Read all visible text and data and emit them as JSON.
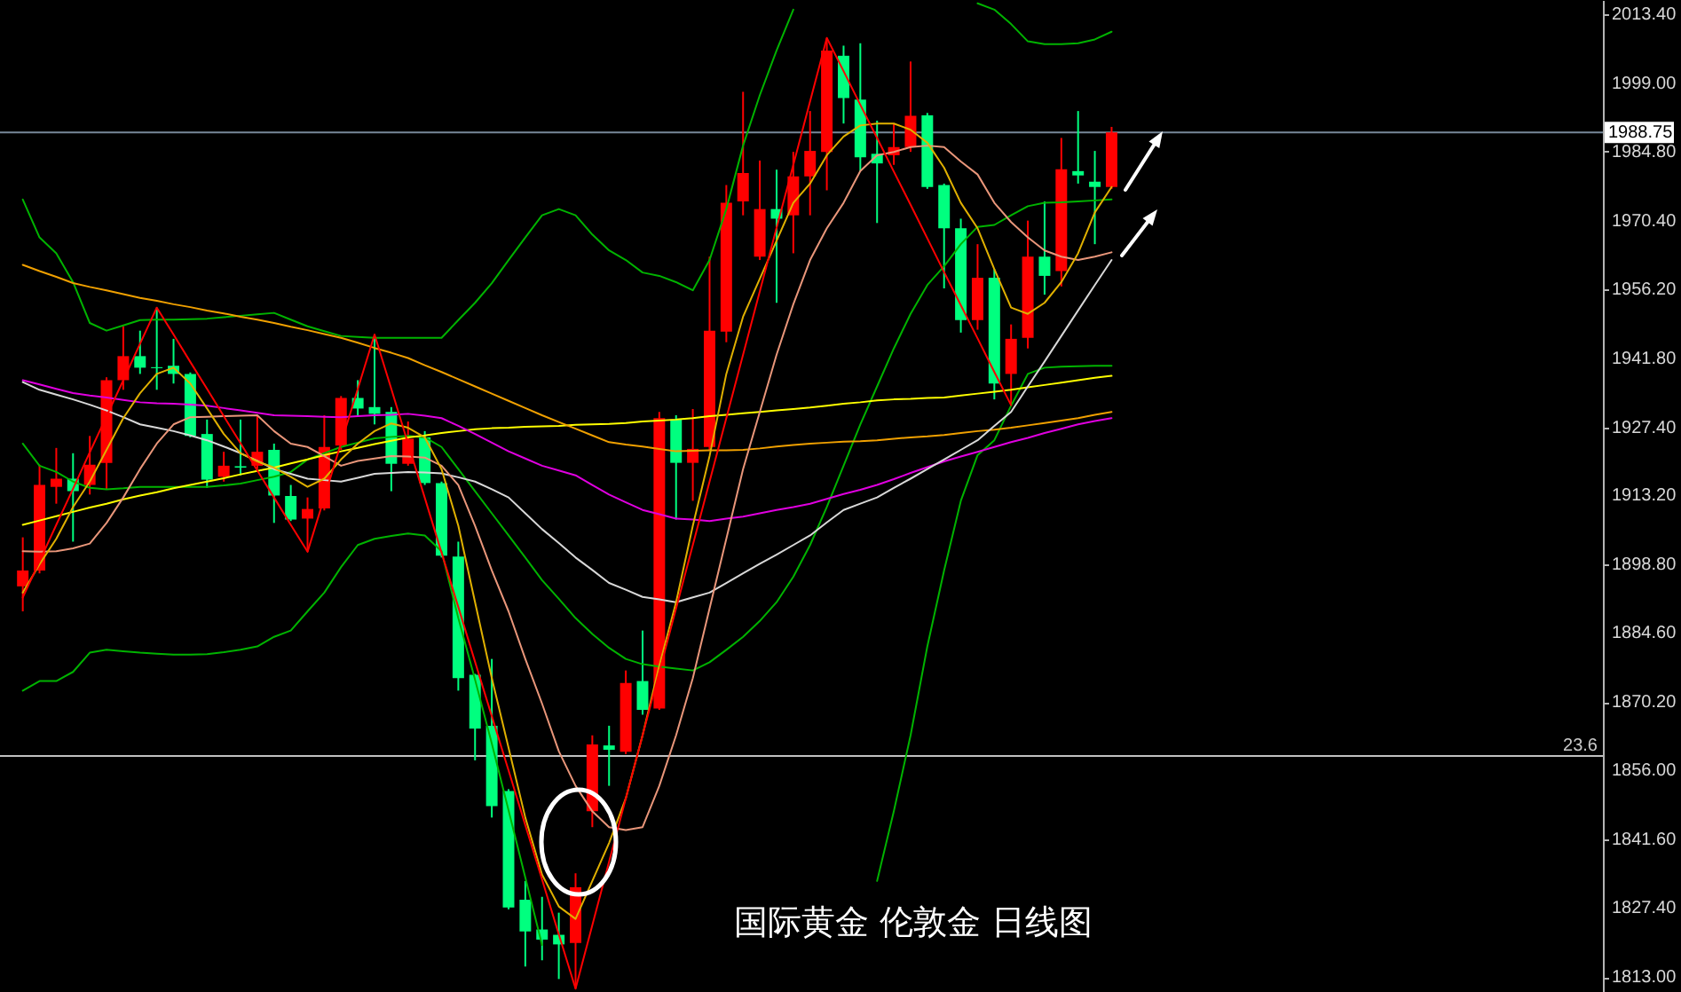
{
  "chart_data": {
    "type": "candlestick",
    "title": "国际黄金 伦敦金 日线图",
    "categories": [
      null,
      null,
      null,
      null,
      null,
      null,
      null,
      null,
      null,
      null,
      null,
      null,
      null,
      null,
      null,
      null,
      null,
      null,
      null,
      null,
      null,
      null,
      null,
      null,
      null,
      null,
      null,
      null,
      null,
      null,
      null,
      null,
      null,
      null,
      null,
      null,
      null,
      null,
      null,
      null,
      null,
      null,
      null,
      null,
      null,
      null,
      null,
      null,
      null,
      null,
      null,
      null,
      null,
      null,
      null,
      null,
      null,
      null,
      null,
      null,
      null,
      null,
      null,
      null,
      null,
      null
    ],
    "ohlc": [
      [
        1894.3,
        1904.5,
        1889.1,
        1897.6
      ],
      [
        1897.6,
        1919.6,
        1897.0,
        1915.4
      ],
      [
        1915.0,
        1923.1,
        1911.5,
        1916.7
      ],
      [
        1916.7,
        1922.0,
        1903.6,
        1914.1
      ],
      [
        1915.4,
        1925.6,
        1913.4,
        1919.6
      ],
      [
        1920.0,
        1937.8,
        1914.5,
        1937.2
      ],
      [
        1937.2,
        1948.4,
        1935.2,
        1942.2
      ],
      [
        1942.2,
        1947.5,
        1938.5,
        1939.8
      ],
      [
        1939.9,
        1952.3,
        1935.2,
        1939.7
      ],
      [
        1940.2,
        1945.8,
        1936.5,
        1938.5
      ],
      [
        1938.5,
        1938.8,
        1925.3,
        1925.6
      ],
      [
        1926.0,
        1929.0,
        1914.8,
        1916.5
      ],
      [
        1917.1,
        1922.3,
        1916.1,
        1919.4
      ],
      [
        1919.3,
        1929.0,
        1917.4,
        1919.0
      ],
      [
        1919.4,
        1929.9,
        1918.7,
        1922.3
      ],
      [
        1922.7,
        1924.0,
        1907.5,
        1913.2
      ],
      [
        1913.1,
        1915.4,
        1907.9,
        1908.2
      ],
      [
        1908.4,
        1912.8,
        1901.5,
        1910.4
      ],
      [
        1910.5,
        1929.9,
        1910.1,
        1923.3
      ],
      [
        1923.6,
        1933.9,
        1922.7,
        1933.5
      ],
      [
        1933.5,
        1937.2,
        1929.9,
        1931.3
      ],
      [
        1931.6,
        1946.7,
        1928.0,
        1930.2
      ],
      [
        1930.6,
        1931.6,
        1914.1,
        1919.8
      ],
      [
        1919.8,
        1928.6,
        1919.4,
        1925.0
      ],
      [
        1925.3,
        1926.6,
        1915.4,
        1915.8
      ],
      [
        1915.8,
        1916.1,
        1900.3,
        1900.7
      ],
      [
        1900.5,
        1903.6,
        1872.6,
        1875.2
      ],
      [
        1875.9,
        1876.1,
        1858.1,
        1864.7
      ],
      [
        1865.3,
        1879.2,
        1846.2,
        1848.6
      ],
      [
        1851.7,
        1852.1,
        1827.1,
        1827.5
      ],
      [
        1829.1,
        1833.0,
        1815.2,
        1822.5
      ],
      [
        1822.9,
        1829.7,
        1816.5,
        1820.8
      ],
      [
        1821.8,
        1826.4,
        1812.6,
        1819.8
      ],
      [
        1820.1,
        1834.6,
        1810.6,
        1831.7
      ],
      [
        1847.5,
        1863.3,
        1844.2,
        1861.4
      ],
      [
        1861.2,
        1865.3,
        1852.8,
        1860.3
      ],
      [
        1859.9,
        1876.8,
        1859.4,
        1874.2
      ],
      [
        1874.6,
        1885.1,
        1867.6,
        1868.6
      ],
      [
        1868.9,
        1930.6,
        1868.6,
        1929.3
      ],
      [
        1929.0,
        1929.9,
        1908.2,
        1920.0
      ],
      [
        1920.0,
        1931.2,
        1912.1,
        1922.9
      ],
      [
        1923.3,
        1962.9,
        1922.7,
        1947.5
      ],
      [
        1947.3,
        1977.8,
        1945.1,
        1974.1
      ],
      [
        1974.4,
        1997.2,
        1971.5,
        1980.3
      ],
      [
        1962.9,
        1982.9,
        1962.2,
        1972.8
      ],
      [
        1972.8,
        1981.0,
        1953.3,
        1970.8
      ],
      [
        1971.5,
        1984.7,
        1963.6,
        1979.6
      ],
      [
        1979.6,
        1993.2,
        1971.5,
        1984.9
      ],
      [
        1984.7,
        2008.4,
        1976.7,
        2005.8
      ],
      [
        2004.7,
        2006.8,
        1990.6,
        1995.9
      ],
      [
        1995.6,
        2007.3,
        1980.7,
        1983.6
      ],
      [
        1984.3,
        1991.2,
        1969.9,
        1982.3
      ],
      [
        1984.0,
        1990.6,
        1982.0,
        1985.7
      ],
      [
        1985.7,
        2003.5,
        1984.7,
        1992.2
      ],
      [
        1992.3,
        1992.8,
        1977.0,
        1977.4
      ],
      [
        1977.8,
        1978.1,
        1956.3,
        1968.8
      ],
      [
        1968.8,
        1970.8,
        1947.1,
        1949.7
      ],
      [
        1949.7,
        1965.5,
        1947.7,
        1958.5
      ],
      [
        1958.5,
        1960.3,
        1933.2,
        1936.5
      ],
      [
        1938.5,
        1948.8,
        1932.0,
        1945.8
      ],
      [
        1946.0,
        1970.4,
        1943.8,
        1962.9
      ],
      [
        1962.9,
        1974.4,
        1955.0,
        1958.9
      ],
      [
        1959.9,
        1987.6,
        1956.7,
        1981.1
      ],
      [
        1980.7,
        1993.2,
        1978.1,
        1979.8
      ],
      [
        1978.5,
        1984.9,
        1965.5,
        1977.4
      ],
      [
        1977.4,
        1989.9,
        1977.0,
        1988.75
      ]
    ],
    "colors": [
      "#ff0000",
      "#ff0000",
      "#ff0000",
      "#00ff7f",
      "#ff0000",
      "#ff0000",
      "#ff0000",
      "#00ff7f",
      "#00ff7f",
      "#00ff7f",
      "#00ff7f",
      "#00ff7f",
      "#ff0000",
      "#00ff7f",
      "#ff0000",
      "#00ff7f",
      "#00ff7f",
      "#ff0000",
      "#ff0000",
      "#ff0000",
      "#00ff7f",
      "#00ff7f",
      "#00ff7f",
      "#ff0000",
      "#00ff7f",
      "#00ff7f",
      "#00ff7f",
      "#00ff7f",
      "#00ff7f",
      "#00ff7f",
      "#00ff7f",
      "#00ff7f",
      "#00ff7f",
      "#ff0000",
      "#ff0000",
      "#00ff7f",
      "#ff0000",
      "#00ff7f",
      "#ff0000",
      "#00ff7f",
      "#ff0000",
      "#ff0000",
      "#ff0000",
      "#ff0000",
      "#ff0000",
      "#00ff7f",
      "#ff0000",
      "#ff0000",
      "#ff0000",
      "#00ff7f",
      "#00ff7f",
      "#00ff7f",
      "#ff0000",
      "#ff0000",
      "#00ff7f",
      "#00ff7f",
      "#00ff7f",
      "#ff0000",
      "#00ff7f",
      "#ff0000",
      "#ff0000",
      "#00ff7f",
      "#ff0000",
      "#00ff7f",
      "#00ff7f",
      "#ff0000"
    ],
    "series": [
      {
        "type": "line",
        "color": "#00b300",
        "values": [
          1974.8,
          1966.9,
          1963.6,
          1957.6,
          1949.1,
          1947.5,
          1948.6,
          1949.7,
          1949.8,
          1949.8,
          1949.9,
          1950.0,
          1950.3,
          1950.6,
          1950.9,
          1951.2,
          1949.8,
          1948.4,
          1947.4,
          1946.4,
          1946.2,
          1946.0,
          1946.0,
          1946.0,
          1946.0,
          1946.0,
          1949.7,
          1953.3,
          1957.4,
          1962.2,
          1966.9,
          1971.5,
          1972.8,
          1971.5,
          1967.5,
          1964.2,
          1962.2,
          1959.6,
          1958.9,
          1957.6,
          1955.9,
          1962.2,
          1972.8,
          1986.0,
          1996.5,
          2005.8,
          2014.3,
          null,
          null,
          null,
          null,
          null,
          null,
          null,
          null,
          null,
          null,
          2015.6,
          2014.3,
          2011.3,
          2007.7,
          2007.1,
          2007.1,
          2007.3,
          2008.1,
          2009.7
        ]
      },
      {
        "type": "line",
        "color": "#00b300",
        "values": [
          1924.0,
          1919.4,
          1918.1,
          1916.1,
          1914.8,
          1914.5,
          1914.7,
          1915.0,
          1915.0,
          1915.0,
          1915.0,
          1915.0,
          1915.3,
          1915.7,
          1916.4,
          1917.1,
          1918.1,
          1920.7,
          1922.0,
          1923.3,
          1924.2,
          1925.1,
          1925.4,
          1925.6,
          1925.3,
          1923.3,
          1918.7,
          1914.1,
          1909.5,
          1904.9,
          1900.3,
          1895.6,
          1891.7,
          1887.7,
          1884.4,
          1881.5,
          1879.2,
          1878.1,
          1877.6,
          1877.2,
          1876.8,
          1878.5,
          1881.1,
          1883.8,
          1887.1,
          1891.0,
          1896.3,
          1902.9,
          1910.8,
          1919.4,
          1928.0,
          1935.9,
          1943.8,
          1951.0,
          1957.0,
          1960.9,
          1965.5,
          1969.1,
          1969.5,
          1971.5,
          1973.4,
          1974.1,
          1974.2,
          1974.4,
          1974.6,
          1974.8
        ]
      },
      {
        "type": "line",
        "color": "#00b300",
        "values": [
          1872.6,
          1874.6,
          1874.6,
          1876.5,
          1880.5,
          1881.1,
          1880.8,
          1880.5,
          1880.3,
          1880.1,
          1880.1,
          1880.2,
          1880.6,
          1881.1,
          1881.8,
          1883.8,
          1885.1,
          1889.1,
          1893.0,
          1898.3,
          1902.9,
          1904.2,
          1904.8,
          1905.3,
          1904.9,
          1901.6,
          1887.7,
          1874.9,
          1861.6,
          1847.7,
          1833.7,
          1819.7,
          null,
          null,
          null,
          null,
          null,
          null,
          null,
          null,
          null,
          null,
          null,
          null,
          null,
          null,
          null,
          null,
          null,
          null,
          null,
          1833.0,
          1847.5,
          1863.3,
          1881.8,
          1897.6,
          1912.1,
          1921.6,
          1924.7,
          1931.9,
          1938.5,
          1939.8,
          1940.0,
          1940.1,
          1940.2,
          1940.2
        ]
      },
      {
        "type": "line",
        "color": "#ffff00",
        "values": [
          1907.1,
          1908.0,
          1908.9,
          1909.8,
          1910.7,
          1911.5,
          1912.4,
          1913.2,
          1913.9,
          1914.7,
          1915.4,
          1916.1,
          1916.8,
          1917.6,
          1918.3,
          1919.0,
          1919.9,
          1920.7,
          1921.6,
          1922.4,
          1923.1,
          1923.9,
          1924.6,
          1925.3,
          1925.7,
          1926.2,
          1926.6,
          1927.0,
          1927.2,
          1927.3,
          1927.5,
          1927.6,
          1927.7,
          1927.9,
          1928.0,
          1928.1,
          1928.3,
          1928.6,
          1928.8,
          1929.0,
          1929.3,
          1929.7,
          1930.0,
          1930.3,
          1930.6,
          1930.9,
          1931.2,
          1931.5,
          1931.9,
          1932.3,
          1932.6,
          1933.0,
          1933.2,
          1933.3,
          1933.5,
          1933.6,
          1934.0,
          1934.4,
          1934.8,
          1935.2,
          1935.7,
          1936.2,
          1936.7,
          1937.2,
          1937.7,
          1938.1
        ]
      },
      {
        "type": "line",
        "color": "#f0a000",
        "values": [
          1961.2,
          1959.9,
          1958.7,
          1957.4,
          1956.6,
          1955.9,
          1955.1,
          1954.3,
          1953.7,
          1953.0,
          1952.4,
          1951.7,
          1951.1,
          1950.4,
          1949.8,
          1949.1,
          1948.3,
          1947.6,
          1946.8,
          1946.0,
          1945.0,
          1943.9,
          1942.9,
          1941.8,
          1940.3,
          1938.9,
          1937.4,
          1935.9,
          1934.4,
          1932.9,
          1931.4,
          1929.9,
          1928.5,
          1927.1,
          1925.7,
          1924.3,
          1923.8,
          1923.4,
          1922.9,
          1922.4,
          1922.5,
          1922.6,
          1922.6,
          1922.7,
          1923.0,
          1923.4,
          1923.7,
          1924.0,
          1924.2,
          1924.4,
          1924.5,
          1924.7,
          1925.0,
          1925.3,
          1925.5,
          1925.8,
          1926.2,
          1926.6,
          1926.9,
          1927.3,
          1927.8,
          1928.3,
          1928.8,
          1929.3,
          1930.0,
          1930.6
        ]
      },
      {
        "type": "line",
        "color": "#e000e0",
        "values": [
          1937.2,
          1936.3,
          1935.4,
          1934.5,
          1934.0,
          1933.6,
          1933.1,
          1932.6,
          1932.4,
          1932.3,
          1932.1,
          1931.9,
          1931.4,
          1930.9,
          1930.4,
          1929.9,
          1929.8,
          1929.7,
          1929.6,
          1929.5,
          1929.7,
          1929.9,
          1930.0,
          1930.2,
          1929.8,
          1929.3,
          1927.7,
          1926.0,
          1924.2,
          1922.4,
          1920.9,
          1919.4,
          1918.4,
          1917.4,
          1915.4,
          1913.4,
          1911.8,
          1910.2,
          1909.3,
          1908.4,
          1908.2,
          1907.9,
          1908.4,
          1908.8,
          1909.5,
          1910.2,
          1910.8,
          1911.5,
          1912.5,
          1913.5,
          1914.4,
          1915.4,
          1916.6,
          1917.9,
          1919.1,
          1920.3,
          1921.3,
          1922.3,
          1923.3,
          1924.3,
          1925.2,
          1926.2,
          1927.1,
          1928.0,
          1928.7,
          1929.3
        ]
      },
      {
        "type": "line",
        "color": "#d8d8d8",
        "values": [
          1936.8,
          1935.2,
          1934.2,
          1933.2,
          1932.1,
          1930.9,
          1929.5,
          1928.0,
          1927.3,
          1926.6,
          1925.7,
          1924.7,
          1923.4,
          1922.0,
          1920.4,
          1918.7,
          1917.7,
          1916.7,
          1916.4,
          1916.1,
          1916.9,
          1917.7,
          1917.9,
          1918.1,
          1918.0,
          1917.8,
          1917.0,
          1916.1,
          1914.5,
          1912.8,
          1909.5,
          1906.2,
          1903.3,
          1900.3,
          1897.7,
          1895.0,
          1893.6,
          1892.1,
          1891.6,
          1891.0,
          1892.0,
          1893.0,
          1895.0,
          1897.0,
          1899.0,
          1900.9,
          1902.9,
          1904.9,
          1907.6,
          1910.2,
          1911.5,
          1912.8,
          1914.8,
          1916.7,
          1918.7,
          1920.7,
          1922.7,
          1924.7,
          1927.7,
          1930.6,
          1935.9,
          1941.1,
          1946.4,
          1951.7,
          1957.0,
          1962.2
        ]
      },
      {
        "type": "line",
        "color": "#e9967a",
        "values": [
          1901.6,
          1901.5,
          1901.6,
          1902.2,
          1903.2,
          1907.5,
          1912.8,
          1918.7,
          1924.0,
          1928.0,
          1929.5,
          1929.6,
          1929.7,
          1929.8,
          1929.9,
          1926.6,
          1924.0,
          1923.3,
          1921.4,
          1919.4,
          1920.4,
          1920.9,
          1921.4,
          1921.3,
          1921.1,
          1919.4,
          1915.4,
          1906.9,
          1897.6,
          1889.1,
          1879.2,
          1869.9,
          1860.0,
          1852.8,
          1847.5,
          1844.2,
          1843.6,
          1844.2,
          1852.8,
          1863.3,
          1875.2,
          1889.7,
          1904.2,
          1918.7,
          1930.6,
          1942.5,
          1953.0,
          1962.2,
          1968.8,
          1974.1,
          1980.7,
          1984.0,
          1984.7,
          1985.7,
          1986.0,
          1985.7,
          1982.7,
          1980.0,
          1974.1,
          1970.1,
          1966.9,
          1964.2,
          1962.9,
          1962.2,
          1962.9,
          1963.8
        ]
      },
      {
        "type": "line",
        "color": "#e0b000",
        "values": [
          1893.0,
          1898.9,
          1904.2,
          1910.8,
          1916.1,
          1922.7,
          1929.3,
          1934.5,
          1938.5,
          1939.8,
          1936.5,
          1931.3,
          1926.0,
          1922.0,
          1920.3,
          1919.0,
          1917.1,
          1915.0,
          1916.7,
          1920.7,
          1924.0,
          1926.6,
          1928.2,
          1927.3,
          1925.3,
          1918.7,
          1906.9,
          1891.0,
          1875.2,
          1860.7,
          1846.2,
          1834.3,
          1827.7,
          1825.1,
          1833.0,
          1840.9,
          1850.2,
          1863.3,
          1877.8,
          1891.0,
          1906.9,
          1921.4,
          1938.5,
          1950.4,
          1958.3,
          1966.2,
          1974.1,
          1978.1,
          1984.0,
          1987.9,
          1990.2,
          1990.6,
          1990.6,
          1989.3,
          1986.6,
          1981.4,
          1974.1,
          1968.8,
          1960.3,
          1952.3,
          1951.0,
          1953.3,
          1957.6,
          1963.6,
          1972.1,
          1977.4
        ]
      },
      {
        "type": "line",
        "color": "#ff0000",
        "values": [
          1892.0,
          1899.5,
          1907.1,
          1914.6,
          1922.2,
          1929.7,
          1937.2,
          1944.8,
          1952.3,
          1946.7,
          1941.0,
          1935.4,
          1929.7,
          1924.1,
          1918.4,
          1912.8,
          1907.1,
          1901.5,
          1912.8,
          1924.1,
          1935.4,
          1946.7,
          1935.4,
          1924.0,
          1912.7,
          1901.3,
          1890.0,
          1878.6,
          1867.3,
          1856.0,
          1844.6,
          1833.3,
          1821.9,
          1810.6,
          1823.8,
          1837.0,
          1850.2,
          1863.3,
          1876.5,
          1889.7,
          1902.9,
          1916.1,
          1929.3,
          1942.5,
          1955.7,
          1968.9,
          1982.0,
          1995.2,
          2008.4,
          2001.5,
          1994.5,
          1987.6,
          1980.6,
          1973.7,
          1966.7,
          1959.7,
          1952.8,
          1945.9,
          1938.9,
          1932.0,
          null,
          null,
          null,
          null,
          null,
          null
        ]
      }
    ],
    "ylim": [
      1809.9,
      2016.3
    ],
    "yticks": [
      {
        "value": 2013.4,
        "label": "2013.40"
      },
      {
        "value": 1999,
        "label": "1999.00"
      },
      {
        "value": 1984.8,
        "label": "1984.80"
      },
      {
        "value": 1970.4,
        "label": "1970.40"
      },
      {
        "value": 1956.2,
        "label": "1956.20"
      },
      {
        "value": 1941.8,
        "label": "1941.80"
      },
      {
        "value": 1927.4,
        "label": "1927.40"
      },
      {
        "value": 1913.2,
        "label": "1913.20"
      },
      {
        "value": 1898.8,
        "label": "1898.80"
      },
      {
        "value": 1884.6,
        "label": "1884.60"
      },
      {
        "value": 1870.2,
        "label": "1870.20"
      },
      {
        "value": 1856,
        "label": "1856.00"
      },
      {
        "value": 1841.6,
        "label": "1841.60"
      },
      {
        "value": 1827.4,
        "label": "1827.40"
      },
      {
        "value": 1813,
        "label": "1813.00"
      }
    ],
    "ref_lines": [
      {
        "axis": "y",
        "value": 1988.75,
        "label": "1988.75",
        "color": "#778899"
      },
      {
        "axis": "y",
        "value": 1859.0,
        "color": "#c0c0c0"
      }
    ],
    "annotations": [
      {
        "text": "23.6",
        "y": 1859.0
      }
    ],
    "tick_labels": "y"
  }
}
